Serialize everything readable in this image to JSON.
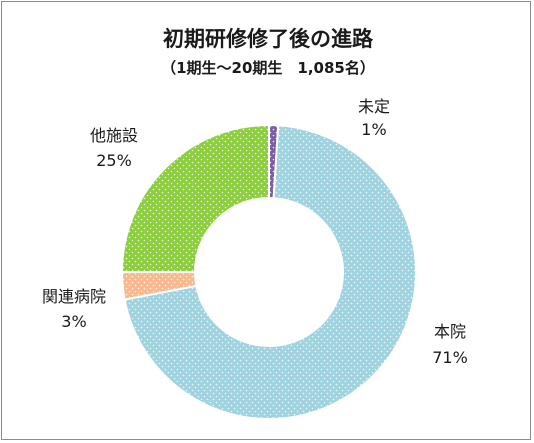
{
  "chart_data": {
    "type": "pie",
    "donut": true,
    "title": "初期研修修了後の進路",
    "subtitle": "（1期生～20期生　1,085名）",
    "categories": [
      "未定",
      "本院",
      "関連病院",
      "他施設"
    ],
    "values": [
      1,
      71,
      3,
      25
    ],
    "value_labels": [
      "1%",
      "71%",
      "3%",
      "25%"
    ],
    "colors": {
      "未定": "#7b5ea7",
      "本院": "#9fd3e0",
      "関連病院": "#f9b98c",
      "他施設": "#8ccf3c"
    },
    "legend": "none"
  }
}
